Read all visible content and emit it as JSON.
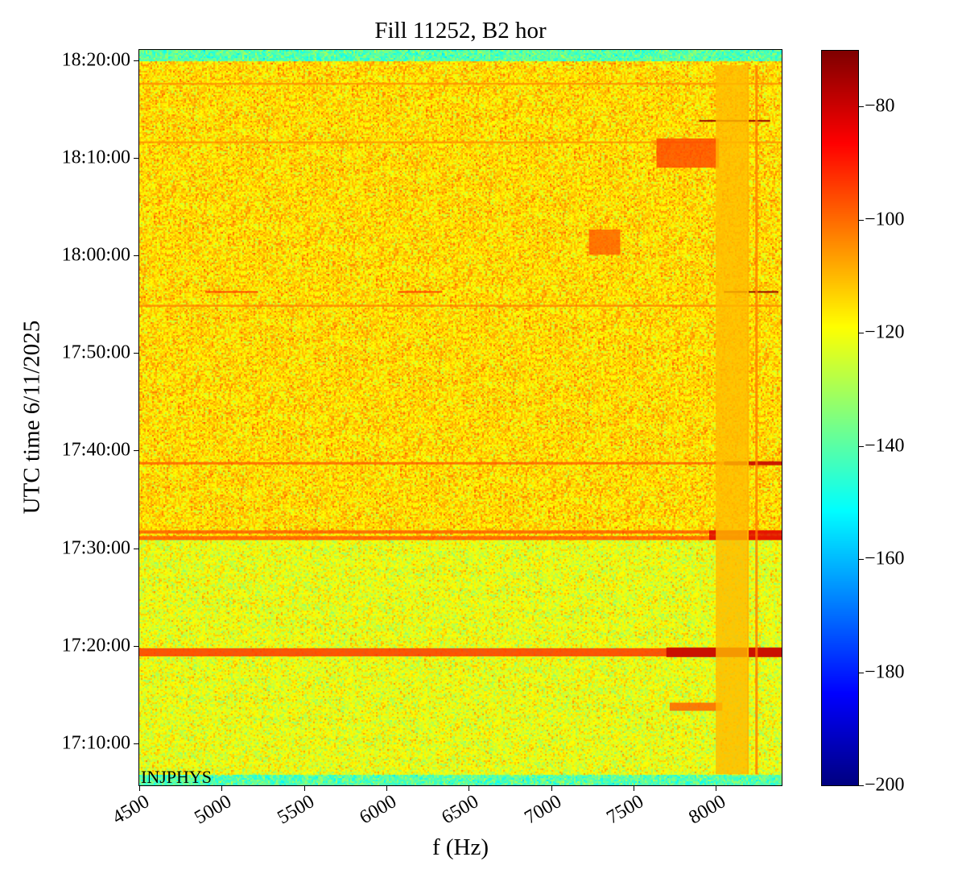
{
  "chart_data": {
    "type": "heatmap",
    "title": "Fill 11252, B2 hor",
    "xlabel": "f (Hz)",
    "ylabel": "UTC time 6/11/2025",
    "xlim": [
      4500,
      8400
    ],
    "ylim": [
      "17:05:42",
      "18:21:04"
    ],
    "xticks": [
      4500,
      5000,
      5500,
      6000,
      6500,
      7000,
      7500,
      8000
    ],
    "yticks": [
      "17:10:00",
      "17:20:00",
      "17:30:00",
      "17:40:00",
      "17:50:00",
      "18:00:00",
      "18:10:00",
      "18:20:00"
    ],
    "colorbar": {
      "colormap": "jet",
      "range": [
        -200,
        -70
      ],
      "ticks": [
        -80,
        -100,
        -120,
        -140,
        -160,
        -180,
        -200
      ]
    },
    "annotation": "INJPHYS",
    "background_levels": [
      {
        "t_start": "17:05:42",
        "t_end": "17:06:50",
        "level": -140
      },
      {
        "t_start": "17:06:50",
        "t_end": "17:31:00",
        "level": -121
      },
      {
        "t_start": "17:31:00",
        "t_end": "18:20:00",
        "level": -114
      },
      {
        "t_start": "18:20:00",
        "t_end": "18:21:04",
        "level": -140
      }
    ],
    "features": [
      {
        "t_start": "18:17:30",
        "t_end": "18:17:42",
        "f_start": 4500,
        "f_end": 8400,
        "level": -105
      },
      {
        "t_start": "18:11:30",
        "t_end": "18:11:42",
        "f_start": 4500,
        "f_end": 8400,
        "level": -105
      },
      {
        "t_start": "17:54:45",
        "t_end": "17:54:57",
        "f_start": 4500,
        "f_end": 8400,
        "level": -103
      },
      {
        "t_start": "17:38:35",
        "t_end": "17:38:50",
        "f_start": 4500,
        "f_end": 8400,
        "level": -98
      },
      {
        "t_start": "17:31:30",
        "t_end": "17:31:50",
        "f_start": 4500,
        "f_end": 8400,
        "level": -97
      },
      {
        "t_start": "17:30:50",
        "t_end": "17:31:15",
        "f_start": 4500,
        "f_end": 8400,
        "level": -97
      },
      {
        "t_start": "17:18:55",
        "t_end": "17:19:45",
        "f_start": 4500,
        "f_end": 8400,
        "level": -92
      },
      {
        "t_start": "18:13:42",
        "t_end": "18:13:54",
        "f_start": 7900,
        "f_end": 8330,
        "level": -72
      },
      {
        "t_start": "17:56:10",
        "t_end": "17:56:22",
        "f_start": 8050,
        "f_end": 8380,
        "level": -72
      },
      {
        "t_start": "17:56:10",
        "t_end": "17:56:22",
        "f_start": 4900,
        "f_end": 5220,
        "level": -95
      },
      {
        "t_start": "17:56:10",
        "t_end": "17:56:22",
        "f_start": 6070,
        "f_end": 6340,
        "level": -95
      },
      {
        "t_start": "18:00:05",
        "t_end": "18:02:40",
        "f_start": 7230,
        "f_end": 7420,
        "level": -98
      },
      {
        "t_start": "18:09:00",
        "t_end": "18:12:00",
        "f_start": 7640,
        "f_end": 8020,
        "level": -95
      },
      {
        "t_start": "17:13:20",
        "t_end": "17:14:10",
        "f_start": 7720,
        "f_end": 8040,
        "level": -98
      },
      {
        "t_start": "17:38:30",
        "t_end": "17:38:55",
        "f_start": 8050,
        "f_end": 8400,
        "level": -78
      },
      {
        "t_start": "17:30:50",
        "t_end": "17:31:50",
        "f_start": 7960,
        "f_end": 8400,
        "level": -82
      },
      {
        "t_start": "17:18:50",
        "t_end": "17:19:50",
        "f_start": 7700,
        "f_end": 8400,
        "level": -78
      },
      {
        "t_start": "17:06:50",
        "t_end": "18:19:30",
        "f_start": 8240,
        "f_end": 8255,
        "level": -102
      },
      {
        "t_start": "17:06:50",
        "t_end": "18:19:30",
        "f_start": 8190,
        "f_end": 8200,
        "level": -106
      },
      {
        "t_start": "17:06:50",
        "t_end": "18:19:30",
        "f_start": 8000,
        "f_end": 8200,
        "level": -110
      }
    ]
  }
}
